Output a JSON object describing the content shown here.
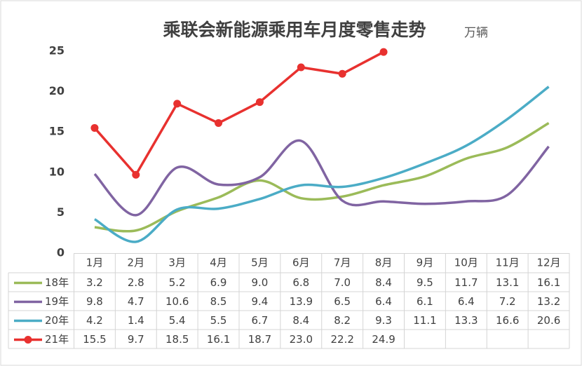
{
  "chart_data": {
    "type": "line",
    "title": "乘联会新能源乘用车月度零售走势",
    "unit": "万辆",
    "categories": [
      "1月",
      "2月",
      "3月",
      "4月",
      "5月",
      "6月",
      "7月",
      "8月",
      "9月",
      "10月",
      "11月",
      "12月"
    ],
    "ylim": [
      0,
      25
    ],
    "yticks": [
      0,
      5,
      10,
      15,
      20,
      25
    ],
    "grid": false,
    "series": [
      {
        "name": "18年",
        "color": "#9bbb59",
        "smooth": true,
        "markers": false,
        "values": [
          3.2,
          2.8,
          5.2,
          6.9,
          9.0,
          6.8,
          7.0,
          8.4,
          9.5,
          11.7,
          13.1,
          16.1
        ],
        "value_labels": [
          "3.2",
          "2.8",
          "5.2",
          "6.9",
          "9.0",
          "6.8",
          "7.0",
          "8.4",
          "9.5",
          "11.7",
          "13.1",
          "16.1"
        ]
      },
      {
        "name": "19年",
        "color": "#8064a2",
        "smooth": true,
        "markers": false,
        "values": [
          9.8,
          4.7,
          10.6,
          8.5,
          9.4,
          13.9,
          6.5,
          6.4,
          6.1,
          6.4,
          7.2,
          13.2
        ],
        "value_labels": [
          "9.8",
          "4.7",
          "10.6",
          "8.5",
          "9.4",
          "13.9",
          "6.5",
          "6.4",
          "6.1",
          "6.4",
          "7.2",
          "13.2"
        ]
      },
      {
        "name": "20年",
        "color": "#4bacc6",
        "smooth": true,
        "markers": false,
        "values": [
          4.2,
          1.4,
          5.4,
          5.5,
          6.7,
          8.4,
          8.2,
          9.3,
          11.1,
          13.3,
          16.6,
          20.6
        ],
        "value_labels": [
          "4.2",
          "1.4",
          "5.4",
          "5.5",
          "6.7",
          "8.4",
          "8.2",
          "9.3",
          "11.1",
          "13.3",
          "16.6",
          "20.6"
        ]
      },
      {
        "name": "21年",
        "color": "#e8312f",
        "smooth": false,
        "markers": true,
        "values": [
          15.5,
          9.7,
          18.5,
          16.1,
          18.7,
          23.0,
          22.2,
          24.9,
          null,
          null,
          null,
          null
        ],
        "value_labels": [
          "15.5",
          "9.7",
          "18.5",
          "16.1",
          "18.7",
          "23.0",
          "22.2",
          "24.9",
          null,
          null,
          null,
          null
        ]
      }
    ]
  }
}
